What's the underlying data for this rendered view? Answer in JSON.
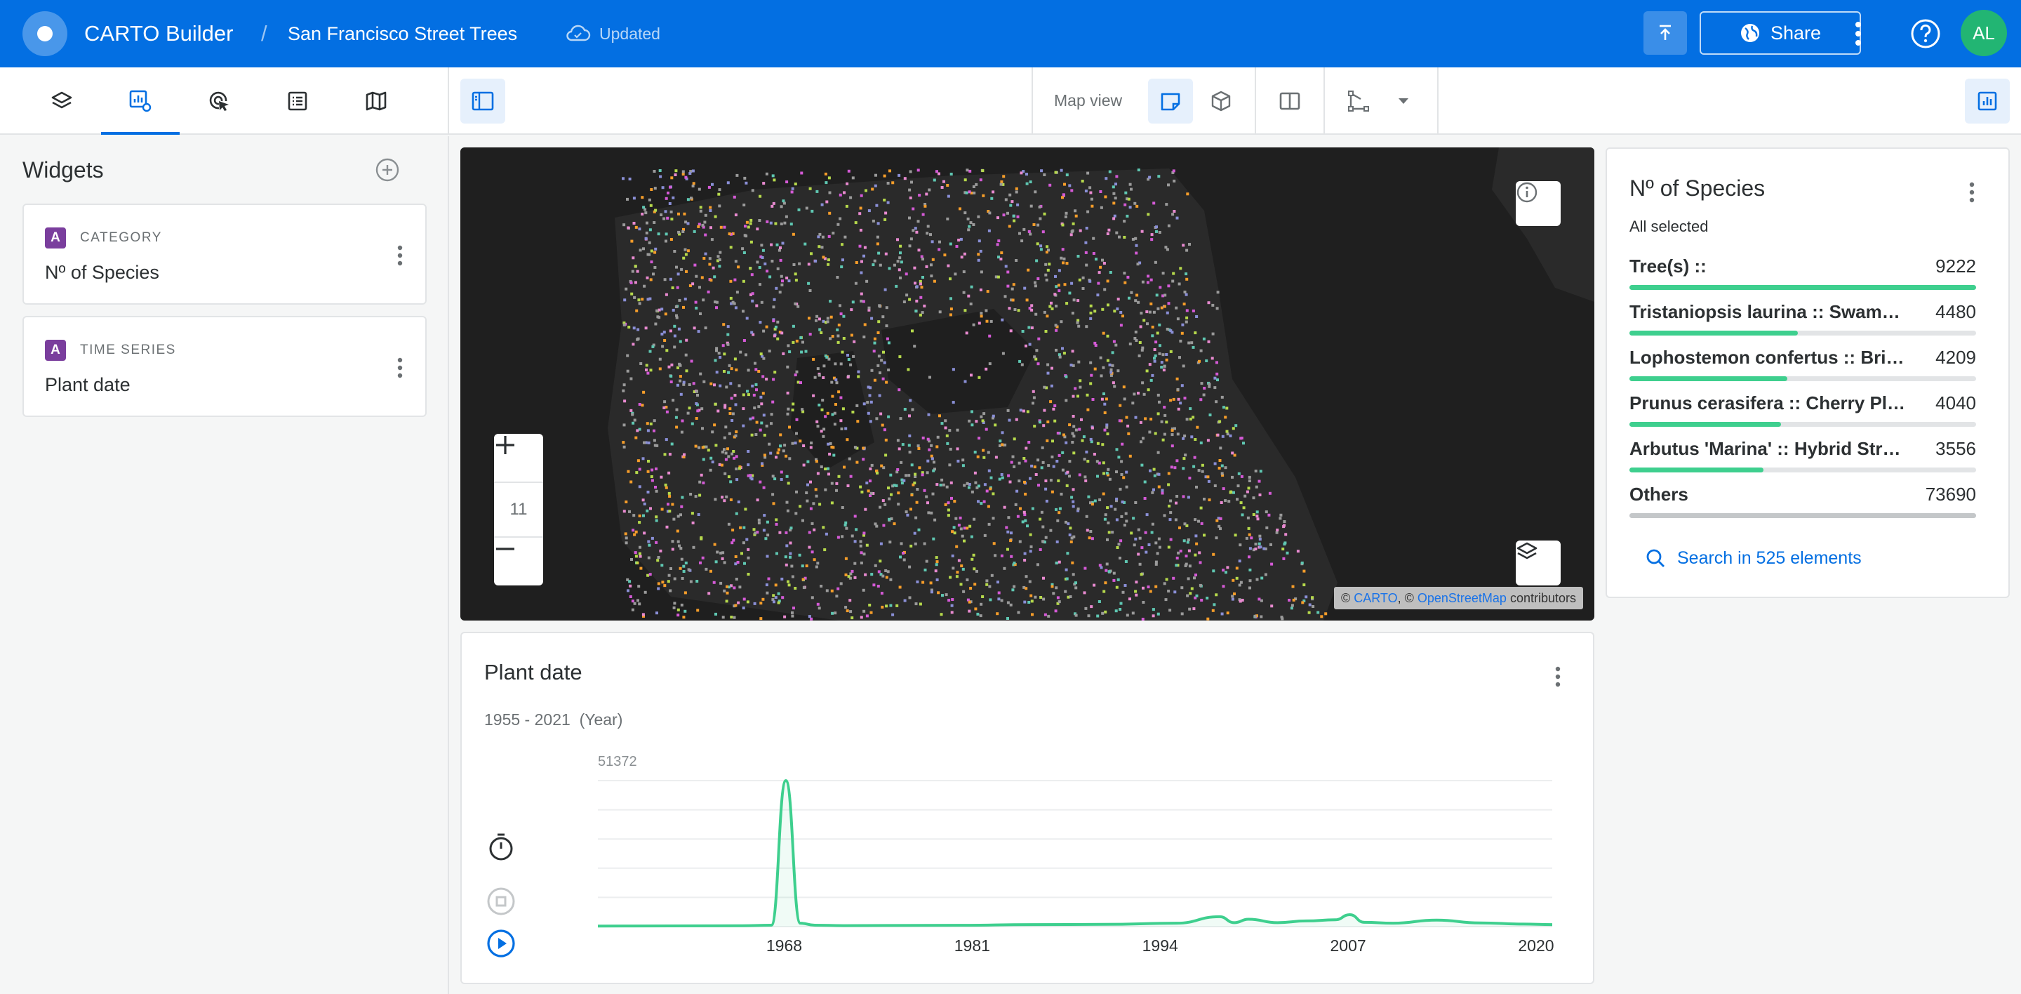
{
  "header": {
    "app_title": "CARTO Builder",
    "separator": "/",
    "map_title": "San Francisco Street Trees",
    "status": "Updated",
    "share_label": "Share",
    "avatar_initials": "AL"
  },
  "toolbar": {
    "map_view_label": "Map view",
    "left_tabs": [
      "layers-icon",
      "widgets-icon",
      "interactions-icon",
      "legend-icon",
      "basemap-icon"
    ],
    "active_tab": "widgets-icon"
  },
  "left_panel": {
    "title": "Widgets",
    "widgets": [
      {
        "badge": "A",
        "type": "CATEGORY",
        "name": "Nº of Species"
      },
      {
        "badge": "A",
        "type": "TIME SERIES",
        "name": "Plant date"
      }
    ]
  },
  "map": {
    "zoom_level": "11",
    "attribution_copy": "©",
    "attribution_carto": "CARTO",
    "attribution_comma": ", ©",
    "attribution_osm": "OpenStreetMap",
    "attribution_suffix": "contributors"
  },
  "time_series": {
    "title": "Plant date",
    "range_label": "1955 - 2021",
    "unit_label": "(Year)",
    "max_label": "51372",
    "x_ticks": [
      "1968",
      "1981",
      "1994",
      "2007",
      "2020"
    ]
  },
  "category_widget": {
    "title": "Nº of Species",
    "subtitle": "All selected",
    "search_label": "Search in 525 elements",
    "bar_color": "#3ecf8e",
    "rows": [
      {
        "label": "Tree(s) ::",
        "value": "9222",
        "fraction": 1.0
      },
      {
        "label": "Tristaniopsis laurina :: Swamp Myrtle",
        "value": "4480",
        "fraction": 0.486
      },
      {
        "label": "Lophostemon confertus :: Brisbane Box",
        "value": "4209",
        "fraction": 0.456
      },
      {
        "label": "Prunus cerasifera :: Cherry Plum",
        "value": "4040",
        "fraction": 0.438
      },
      {
        "label": "Arbutus 'Marina' :: Hybrid Strawberry Tree",
        "value": "3556",
        "fraction": 0.386
      },
      {
        "label": "Others",
        "value": "73690",
        "fraction": 1.0,
        "muted": true
      }
    ]
  },
  "chart_data": {
    "type": "area",
    "title": "Plant date",
    "xlabel": "Year",
    "ylabel": "",
    "xlim": [
      1955,
      2021
    ],
    "ylim": [
      0,
      51372
    ],
    "x": [
      1955,
      1960,
      1965,
      1967,
      1968,
      1969,
      1970,
      1972,
      1975,
      1980,
      1985,
      1990,
      1995,
      1998,
      1999,
      2000,
      2002,
      2004,
      2006,
      2007,
      2008,
      2010,
      2013,
      2016,
      2019,
      2021
    ],
    "series": [
      {
        "values": [
          200,
          250,
          300,
          500,
          51372,
          1200,
          500,
          350,
          400,
          450,
          700,
          800,
          1200,
          3500,
          1400,
          2600,
          1400,
          2000,
          2400,
          4200,
          1500,
          1200,
          2300,
          1300,
          900,
          700
        ]
      }
    ]
  }
}
